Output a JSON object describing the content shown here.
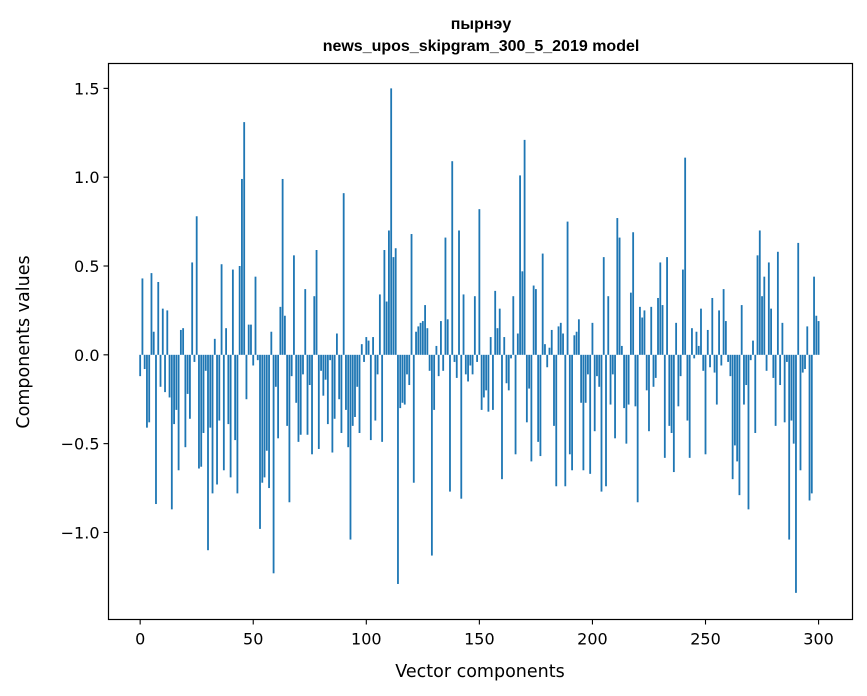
{
  "chart_data": {
    "type": "bar",
    "title_line1": "пырнэу",
    "title_line2": "news_upos_skipgram_300_5_2019 model",
    "xlabel": "Vector components",
    "ylabel": "Components values",
    "xlim": [
      -14,
      315
    ],
    "ylim": [
      -1.49,
      1.64
    ],
    "x_ticks": [
      0,
      50,
      100,
      150,
      200,
      250,
      300
    ],
    "x_tick_labels": [
      "0",
      "50",
      "100",
      "150",
      "200",
      "250",
      "300"
    ],
    "y_ticks": [
      -1.0,
      -0.5,
      0.0,
      0.5,
      1.0,
      1.5
    ],
    "y_tick_labels": [
      "−1.0",
      "−0.5",
      "0.0",
      "0.5",
      "1.0",
      "1.5"
    ],
    "bar_color": "#1f77b4",
    "values": [
      -0.12,
      0.43,
      -0.08,
      -0.41,
      -0.38,
      0.46,
      0.13,
      -0.84,
      0.41,
      -0.18,
      0.26,
      -0.21,
      0.25,
      -0.24,
      -0.87,
      -0.39,
      -0.31,
      -0.65,
      0.14,
      0.15,
      -0.52,
      -0.22,
      -0.36,
      0.52,
      -0.04,
      0.78,
      -0.64,
      -0.63,
      -0.44,
      -0.09,
      -1.1,
      -0.41,
      -0.78,
      0.09,
      -0.73,
      -0.37,
      0.51,
      -0.65,
      0.15,
      -0.39,
      -0.69,
      0.48,
      -0.48,
      -0.78,
      0.5,
      0.99,
      1.31,
      -0.25,
      0.17,
      0.17,
      -0.06,
      0.44,
      -0.03,
      -0.98,
      -0.72,
      -0.69,
      -0.54,
      -0.75,
      0.13,
      -1.23,
      -0.18,
      -0.47,
      0.27,
      0.99,
      0.22,
      -0.4,
      -0.83,
      -0.12,
      0.56,
      -0.27,
      -0.49,
      -0.45,
      -0.11,
      0.37,
      -0.45,
      -0.17,
      -0.56,
      0.33,
      0.59,
      -0.53,
      -0.09,
      -0.23,
      -0.14,
      -0.39,
      -0.03,
      -0.55,
      -0.36,
      0.12,
      -0.25,
      -0.44,
      0.91,
      -0.31,
      -0.52,
      -1.04,
      -0.4,
      -0.35,
      -0.18,
      -0.44,
      0.06,
      -0.04,
      0.1,
      0.08,
      -0.48,
      0.1,
      -0.37,
      -0.11,
      0.34,
      -0.49,
      0.59,
      0.3,
      0.7,
      1.5,
      0.55,
      0.6,
      -1.29,
      -0.3,
      -0.27,
      -0.28,
      -0.11,
      -0.17,
      0.68,
      -0.72,
      0.13,
      0.16,
      0.18,
      0.19,
      0.28,
      0.15,
      -0.09,
      -1.13,
      -0.31,
      0.05,
      -0.12,
      0.19,
      -0.09,
      0.66,
      0.2,
      -0.77,
      1.09,
      -0.04,
      -0.13,
      0.7,
      -0.81,
      0.34,
      -0.11,
      -0.15,
      -0.06,
      -0.11,
      0.33,
      -0.04,
      0.82,
      -0.31,
      -0.24,
      -0.2,
      -0.32,
      0.1,
      -0.31,
      0.36,
      0.15,
      0.26,
      -0.7,
      0.1,
      -0.16,
      -0.2,
      -0.02,
      0.33,
      -0.56,
      0.12,
      1.01,
      0.47,
      1.21,
      -0.38,
      -0.19,
      -0.6,
      0.39,
      0.37,
      -0.49,
      -0.57,
      0.57,
      0.06,
      -0.07,
      0.04,
      0.14,
      -0.4,
      -0.74,
      0.16,
      0.18,
      0.12,
      -0.74,
      0.75,
      -0.56,
      -0.65,
      0.11,
      0.13,
      0.2,
      -0.27,
      -0.65,
      -0.27,
      -0.11,
      -0.67,
      0.18,
      -0.43,
      -0.12,
      -0.18,
      -0.77,
      0.55,
      -0.74,
      0.33,
      -0.28,
      -0.11,
      -0.47,
      0.77,
      0.66,
      0.05,
      -0.3,
      -0.5,
      -0.28,
      0.35,
      0.69,
      -0.29,
      -0.83,
      0.27,
      0.21,
      0.25,
      -0.2,
      -0.43,
      0.27,
      -0.18,
      -0.13,
      0.32,
      0.52,
      0.28,
      -0.58,
      0.55,
      -0.4,
      -0.44,
      -0.66,
      0.18,
      -0.29,
      -0.12,
      0.48,
      1.11,
      -0.37,
      -0.58,
      0.15,
      -0.02,
      0.13,
      0.05,
      0.26,
      -0.09,
      -0.56,
      0.14,
      -0.07,
      0.32,
      -0.1,
      -0.28,
      0.25,
      -0.06,
      0.37,
      0.19,
      -0.04,
      -0.12,
      -0.7,
      -0.51,
      -0.6,
      -0.79,
      0.28,
      -0.28,
      -0.17,
      -0.87,
      -0.03,
      0.08,
      -0.44,
      0.56,
      0.7,
      0.33,
      0.44,
      -0.09,
      0.52,
      0.26,
      -0.13,
      -0.4,
      0.58,
      -0.17,
      0.18,
      -0.38,
      -0.04,
      -1.04,
      -0.37,
      -0.5,
      -1.34,
      0.63,
      -0.65,
      -0.1,
      -0.08,
      0.16,
      -0.82,
      -0.78,
      0.44,
      0.22,
      0.19
    ]
  }
}
